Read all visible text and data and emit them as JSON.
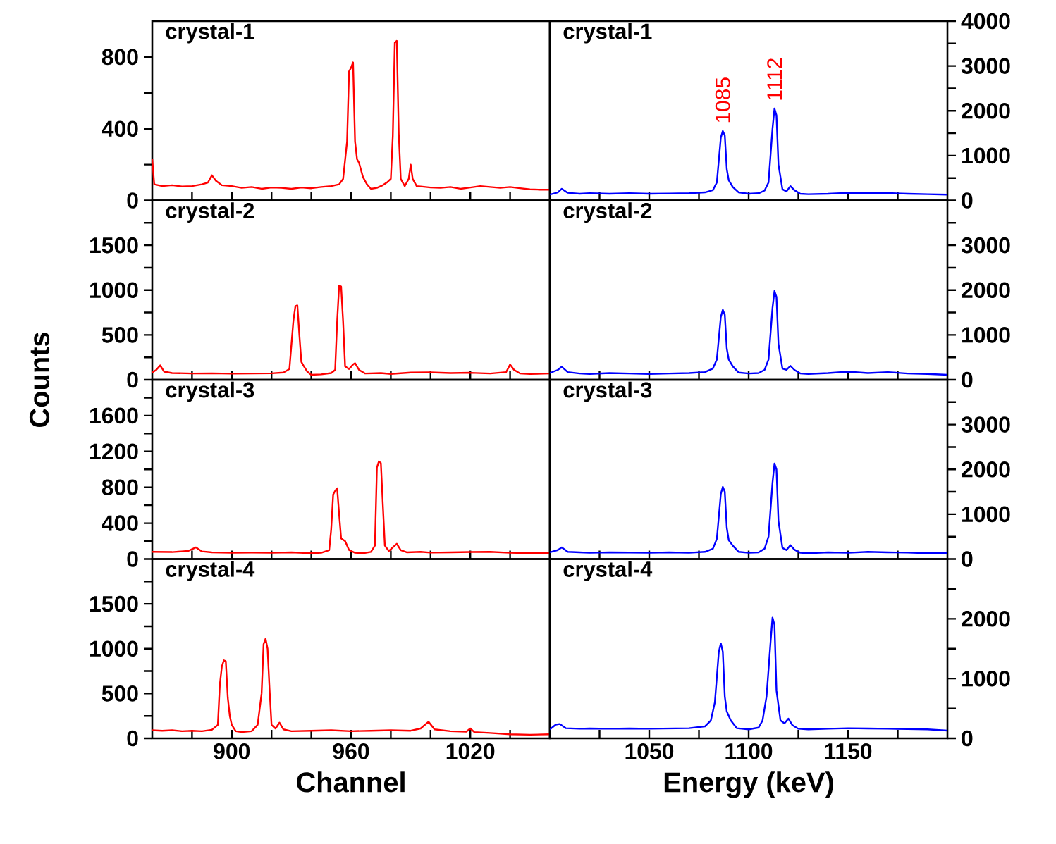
{
  "chart_data": [
    {
      "type": "line",
      "title": "crystal-1",
      "xlim": [
        860,
        1060
      ],
      "ylim": [
        0,
        1000
      ],
      "tick_labels": "y",
      "xticks": [
        {
          "value": 880,
          "label": null
        },
        900,
        {
          "value": 920,
          "label": null
        },
        {
          "value": 940,
          "label": null
        },
        960,
        {
          "value": 980,
          "label": null
        },
        {
          "value": 1000,
          "label": null
        },
        1020,
        {
          "value": 1040,
          "label": null
        }
      ],
      "yticks": [
        0,
        {
          "value": 200,
          "label": null
        },
        400,
        {
          "value": 600,
          "label": null
        },
        800
      ],
      "x": [
        860,
        861,
        865,
        870,
        875,
        880,
        885,
        888,
        890,
        892,
        895,
        900,
        905,
        910,
        915,
        920,
        925,
        930,
        935,
        940,
        945,
        950,
        954,
        956,
        958,
        959,
        960,
        961,
        962,
        963,
        964,
        966,
        968,
        970,
        973,
        976,
        978,
        980,
        981,
        982,
        983,
        984,
        985,
        987,
        989,
        990,
        991,
        993,
        995,
        1000,
        1005,
        1010,
        1015,
        1020,
        1025,
        1030,
        1035,
        1040,
        1045,
        1050,
        1055,
        1060
      ],
      "series": [
        {
          "color": "#ff0000",
          "values": [
            230,
            90,
            80,
            85,
            78,
            80,
            90,
            100,
            140,
            110,
            85,
            80,
            70,
            75,
            65,
            72,
            70,
            65,
            72,
            68,
            75,
            80,
            90,
            120,
            330,
            720,
            740,
            770,
            330,
            230,
            210,
            130,
            90,
            65,
            70,
            85,
            100,
            120,
            360,
            880,
            890,
            370,
            120,
            80,
            120,
            200,
            120,
            80,
            78,
            72,
            70,
            75,
            65,
            72,
            80,
            75,
            70,
            75,
            68,
            62,
            60,
            60
          ]
        }
      ]
    },
    {
      "type": "line",
      "title": "crystal-1",
      "xlim": [
        1000,
        1200
      ],
      "ylim": [
        0,
        4000
      ],
      "tick_labels": "y",
      "xticks": [
        {
          "value": 1025,
          "label": null
        },
        1050,
        {
          "value": 1075,
          "label": null
        },
        1100,
        {
          "value": 1125,
          "label": null
        },
        1150,
        {
          "value": 1175,
          "label": null
        }
      ],
      "yticks": [
        0,
        {
          "value": 500,
          "label": null
        },
        1000,
        {
          "value": 1500,
          "label": null
        },
        2000,
        {
          "value": 2500,
          "label": null
        },
        3000,
        {
          "value": 3500,
          "label": null
        },
        4000
      ],
      "annotations": [
        {
          "text": "1085",
          "x": 1087,
          "y": 1550
        },
        {
          "text": "1112",
          "x": 1113,
          "y": 2050
        }
      ],
      "x": [
        1000,
        1004,
        1006,
        1009,
        1015,
        1020,
        1030,
        1040,
        1050,
        1060,
        1070,
        1078,
        1082,
        1084,
        1086,
        1087,
        1088,
        1089,
        1090,
        1092,
        1095,
        1100,
        1105,
        1108,
        1110,
        1112,
        1113,
        1114,
        1115,
        1117,
        1119,
        1121,
        1123,
        1126,
        1130,
        1140,
        1150,
        1160,
        1170,
        1180,
        1190,
        1200
      ],
      "series": [
        {
          "color": "#0000ff",
          "values": [
            130,
            180,
            260,
            170,
            150,
            160,
            150,
            160,
            150,
            155,
            160,
            180,
            230,
            400,
            1400,
            1550,
            1450,
            700,
            450,
            300,
            180,
            150,
            160,
            220,
            400,
            1600,
            2050,
            1900,
            800,
            250,
            200,
            320,
            230,
            150,
            140,
            150,
            170,
            160,
            165,
            150,
            140,
            130
          ]
        }
      ]
    },
    {
      "type": "line",
      "title": "crystal-2",
      "ylabel": "Counts",
      "xlim": [
        860,
        1060
      ],
      "ylim": [
        0,
        2000
      ],
      "tick_labels": "y",
      "xticks": [
        {
          "value": 880,
          "label": null
        },
        900,
        {
          "value": 920,
          "label": null
        },
        {
          "value": 940,
          "label": null
        },
        960,
        {
          "value": 980,
          "label": null
        },
        {
          "value": 1000,
          "label": null
        },
        1020,
        {
          "value": 1040,
          "label": null
        }
      ],
      "yticks": [
        0,
        {
          "value": 250,
          "label": null
        },
        500,
        {
          "value": 750,
          "label": null
        },
        1000,
        {
          "value": 1250,
          "label": null
        },
        1500,
        {
          "value": 1750,
          "label": null
        }
      ],
      "x": [
        860,
        862,
        864,
        866,
        870,
        880,
        890,
        900,
        910,
        920,
        926,
        929,
        931,
        932,
        933,
        934,
        935,
        936,
        938,
        940,
        945,
        950,
        952,
        953,
        954,
        955,
        956,
        957,
        959,
        961,
        962,
        964,
        967,
        975,
        980,
        990,
        1000,
        1010,
        1020,
        1030,
        1038,
        1040,
        1042,
        1045,
        1050,
        1060
      ],
      "series": [
        {
          "color": "#ff0000",
          "values": [
            80,
            110,
            160,
            90,
            75,
            70,
            72,
            68,
            70,
            72,
            80,
            120,
            660,
            820,
            830,
            500,
            200,
            160,
            90,
            55,
            60,
            75,
            110,
            650,
            1050,
            1040,
            650,
            150,
            120,
            170,
            185,
            110,
            70,
            75,
            65,
            80,
            82,
            75,
            78,
            70,
            85,
            170,
            110,
            70,
            65,
            70
          ]
        }
      ]
    },
    {
      "type": "line",
      "title": "crystal-2",
      "xlim": [
        1000,
        1200
      ],
      "ylim": [
        0,
        4000
      ],
      "tick_labels": "y",
      "xticks": [
        {
          "value": 1025,
          "label": null
        },
        1050,
        {
          "value": 1075,
          "label": null
        },
        1100,
        {
          "value": 1125,
          "label": null
        },
        1150,
        {
          "value": 1175,
          "label": null
        }
      ],
      "yticks": [
        0,
        {
          "value": 500,
          "label": null
        },
        1000,
        {
          "value": 1500,
          "label": null
        },
        2000,
        {
          "value": 2500,
          "label": null
        },
        3000,
        {
          "value": 3500,
          "label": null
        }
      ],
      "x": [
        1000,
        1004,
        1006,
        1009,
        1015,
        1020,
        1030,
        1040,
        1050,
        1060,
        1070,
        1078,
        1082,
        1084,
        1086,
        1087,
        1088,
        1089,
        1090,
        1092,
        1095,
        1100,
        1105,
        1108,
        1110,
        1112,
        1113,
        1114,
        1115,
        1117,
        1119,
        1121,
        1123,
        1126,
        1130,
        1140,
        1150,
        1160,
        1170,
        1180,
        1190,
        1200
      ],
      "series": [
        {
          "color": "#0000ff",
          "values": [
            150,
            220,
            290,
            170,
            140,
            130,
            150,
            140,
            130,
            140,
            150,
            170,
            250,
            450,
            1400,
            1560,
            1450,
            700,
            450,
            300,
            160,
            140,
            150,
            220,
            450,
            1600,
            1980,
            1850,
            800,
            250,
            220,
            310,
            220,
            140,
            130,
            150,
            180,
            150,
            170,
            140,
            130,
            110
          ]
        }
      ]
    },
    {
      "type": "line",
      "title": "crystal-3",
      "xlim": [
        860,
        1060
      ],
      "ylim": [
        0,
        2000
      ],
      "tick_labels": "y",
      "xticks": [
        {
          "value": 880,
          "label": null
        },
        900,
        {
          "value": 920,
          "label": null
        },
        {
          "value": 940,
          "label": null
        },
        960,
        {
          "value": 980,
          "label": null
        },
        {
          "value": 1000,
          "label": null
        },
        1020,
        {
          "value": 1040,
          "label": null
        }
      ],
      "yticks": [
        0,
        {
          "value": 200,
          "label": null
        },
        400,
        {
          "value": 600,
          "label": null
        },
        800,
        {
          "value": 1000,
          "label": null
        },
        1200,
        {
          "value": 1400,
          "label": null
        },
        1600,
        {
          "value": 1800,
          "label": null
        }
      ],
      "x": [
        860,
        870,
        878,
        882,
        885,
        890,
        900,
        910,
        920,
        930,
        940,
        945,
        949,
        950,
        951,
        952,
        953,
        954,
        955,
        957,
        959,
        962,
        966,
        970,
        972,
        973,
        974,
        975,
        976,
        977,
        979,
        981,
        983,
        985,
        988,
        995,
        1000,
        1010,
        1020,
        1030,
        1040,
        1050,
        1060
      ],
      "series": [
        {
          "color": "#ff0000",
          "values": [
            80,
            78,
            90,
            130,
            85,
            75,
            70,
            72,
            70,
            75,
            65,
            70,
            100,
            330,
            720,
            760,
            790,
            500,
            230,
            200,
            100,
            70,
            65,
            80,
            150,
            1020,
            1090,
            1070,
            600,
            150,
            90,
            130,
            170,
            100,
            75,
            80,
            72,
            75,
            78,
            80,
            70,
            65,
            65
          ]
        }
      ]
    },
    {
      "type": "line",
      "title": "crystal-3",
      "xlim": [
        1000,
        1200
      ],
      "ylim": [
        0,
        4000
      ],
      "tick_labels": "y",
      "xticks": [
        {
          "value": 1025,
          "label": null
        },
        1050,
        {
          "value": 1075,
          "label": null
        },
        1100,
        {
          "value": 1125,
          "label": null
        },
        1150,
        {
          "value": 1175,
          "label": null
        }
      ],
      "yticks": [
        0,
        {
          "value": 500,
          "label": null
        },
        1000,
        {
          "value": 1500,
          "label": null
        },
        2000,
        {
          "value": 2500,
          "label": null
        },
        3000,
        {
          "value": 3500,
          "label": null
        }
      ],
      "x": [
        1000,
        1004,
        1006,
        1009,
        1015,
        1020,
        1030,
        1040,
        1050,
        1060,
        1070,
        1078,
        1082,
        1084,
        1086,
        1087,
        1088,
        1089,
        1090,
        1092,
        1095,
        1100,
        1105,
        1108,
        1110,
        1112,
        1113,
        1114,
        1115,
        1117,
        1119,
        1121,
        1123,
        1126,
        1130,
        1140,
        1150,
        1160,
        1170,
        1180,
        1190,
        1200
      ],
      "series": [
        {
          "color": "#0000ff",
          "values": [
            150,
            200,
            260,
            160,
            150,
            140,
            150,
            145,
            140,
            150,
            140,
            160,
            230,
            450,
            1450,
            1610,
            1500,
            700,
            420,
            300,
            160,
            140,
            150,
            230,
            500,
            1700,
            2130,
            2000,
            850,
            250,
            200,
            310,
            210,
            140,
            130,
            150,
            140,
            160,
            150,
            145,
            130,
            130
          ]
        }
      ]
    },
    {
      "type": "line",
      "title": "crystal-4",
      "xlabel": "Channel",
      "xlim": [
        860,
        1060
      ],
      "ylim": [
        0,
        2000
      ],
      "xticks": [
        {
          "value": 880,
          "label": null
        },
        900,
        {
          "value": 920,
          "label": null
        },
        {
          "value": 940,
          "label": null
        },
        960,
        {
          "value": 980,
          "label": null
        },
        {
          "value": 1000,
          "label": null
        },
        1020,
        {
          "value": 1040,
          "label": null
        }
      ],
      "yticks": [
        0,
        {
          "value": 250,
          "label": null
        },
        500,
        {
          "value": 750,
          "label": null
        },
        1000,
        {
          "value": 1250,
          "label": null
        },
        1500,
        {
          "value": 1750,
          "label": null
        }
      ],
      "x": [
        860,
        865,
        870,
        875,
        880,
        885,
        890,
        893,
        894,
        895,
        896,
        897,
        898,
        899,
        900,
        902,
        905,
        910,
        913,
        915,
        916,
        917,
        918,
        919,
        920,
        922,
        924,
        926,
        930,
        940,
        950,
        960,
        970,
        980,
        990,
        995,
        999,
        1002,
        1010,
        1018,
        1020,
        1022,
        1030,
        1040,
        1050,
        1060
      ],
      "series": [
        {
          "color": "#ff0000",
          "values": [
            90,
            85,
            90,
            80,
            85,
            80,
            95,
            150,
            600,
            800,
            870,
            860,
            450,
            250,
            150,
            80,
            70,
            80,
            150,
            500,
            1050,
            1110,
            1000,
            550,
            150,
            110,
            175,
            100,
            80,
            85,
            90,
            80,
            85,
            90,
            85,
            110,
            185,
            100,
            80,
            75,
            110,
            70,
            60,
            45,
            40,
            45
          ]
        }
      ]
    },
    {
      "type": "line",
      "title": "crystal-4",
      "xlabel": "Energy (keV)",
      "xlim": [
        1000,
        1200
      ],
      "ylim": [
        0,
        3000
      ],
      "xticks": [
        {
          "value": 1025,
          "label": null
        },
        1050,
        {
          "value": 1075,
          "label": null
        },
        1100,
        {
          "value": 1125,
          "label": null
        },
        1150,
        {
          "value": 1175,
          "label": null
        }
      ],
      "yticks": [
        0,
        {
          "value": 500,
          "label": null
        },
        1000,
        {
          "value": 1500,
          "label": null
        },
        2000,
        {
          "value": 2500,
          "label": null
        }
      ],
      "x": [
        1000,
        1003,
        1005,
        1008,
        1015,
        1020,
        1030,
        1040,
        1050,
        1060,
        1070,
        1078,
        1081,
        1083,
        1085,
        1086,
        1087,
        1088,
        1089,
        1091,
        1094,
        1100,
        1105,
        1107,
        1109,
        1111,
        1112,
        1113,
        1114,
        1116,
        1118,
        1120,
        1122,
        1125,
        1130,
        1140,
        1150,
        1160,
        1170,
        1180,
        1190,
        1200
      ],
      "series": [
        {
          "color": "#0000ff",
          "values": [
            150,
            230,
            240,
            170,
            160,
            165,
            160,
            165,
            160,
            165,
            170,
            200,
            300,
            600,
            1450,
            1590,
            1450,
            700,
            450,
            300,
            170,
            150,
            180,
            300,
            700,
            1600,
            2020,
            1900,
            800,
            300,
            250,
            330,
            220,
            160,
            150,
            160,
            170,
            165,
            160,
            155,
            150,
            130
          ]
        }
      ]
    }
  ]
}
